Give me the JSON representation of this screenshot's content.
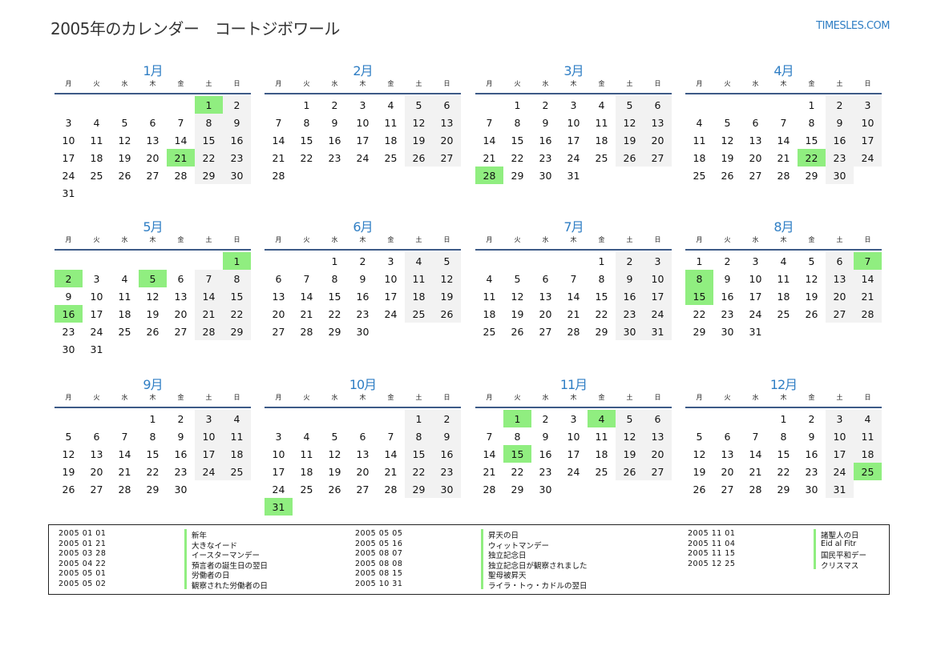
{
  "header": {
    "title": "2005年のカレンダー　コートジボワール",
    "site": "TIMESLES.COM"
  },
  "calendar": {
    "year": 2005,
    "weekdays": [
      "月",
      "火",
      "水",
      "木",
      "金",
      "土",
      "日"
    ],
    "months": [
      "1月",
      "2月",
      "3月",
      "4月",
      "5月",
      "6月",
      "7月",
      "8月",
      "9月",
      "10月",
      "11月",
      "12月"
    ]
  },
  "colors": {
    "accent": "#2f7ec4",
    "holiday": "#90ee80",
    "weekend": "#f2f2f2",
    "rule": "#3d5a87"
  },
  "holidays": [
    {
      "date": "2005 01 01",
      "name": "新年"
    },
    {
      "date": "2005 01 21",
      "name": "大きなイード"
    },
    {
      "date": "2005 03 28",
      "name": "イースターマンデー"
    },
    {
      "date": "2005 04 22",
      "name": "預言者の誕生日の翌日"
    },
    {
      "date": "2005 05 01",
      "name": "労働者の日"
    },
    {
      "date": "2005 05 02",
      "name": "観察された労働者の日"
    },
    {
      "date": "2005 05 05",
      "name": "昇天の日"
    },
    {
      "date": "2005 05 16",
      "name": "ウィットマンデー"
    },
    {
      "date": "2005 08 07",
      "name": "独立記念日"
    },
    {
      "date": "2005 08 08",
      "name": "独立記念日が観察されました"
    },
    {
      "date": "2005 08 15",
      "name": "聖母被昇天"
    },
    {
      "date": "2005 10 31",
      "name": "ライラ・トゥ・カドルの翌日"
    },
    {
      "date": "2005 11 01",
      "name": "諸聖人の日"
    },
    {
      "date": "2005 11 04",
      "name": "Eid al Fitr"
    },
    {
      "date": "2005 11 15",
      "name": "国民平和デー"
    },
    {
      "date": "2005 12 25",
      "name": "クリスマス"
    }
  ]
}
